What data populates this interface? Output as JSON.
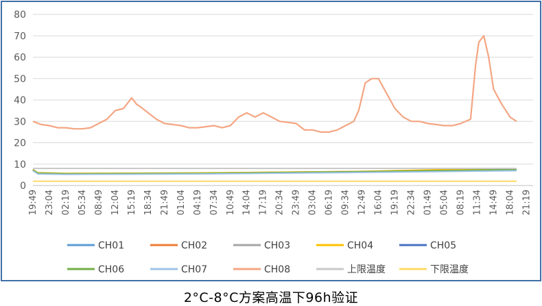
{
  "caption": "2°C-8°C方案高温下96h验证",
  "chart_data": {
    "type": "line",
    "title": "",
    "xlabel": "",
    "ylabel": "",
    "ylim": [
      0,
      80
    ],
    "yticks": [
      0,
      10,
      20,
      30,
      40,
      50,
      60,
      70,
      80
    ],
    "grid": "horizontal",
    "legend_position": "bottom",
    "x_tick_labels": [
      "19:49",
      "23:04",
      "02:19",
      "05:34",
      "08:49",
      "12:04",
      "15:19",
      "18:34",
      "21:49",
      "01:04",
      "04:19",
      "07:34",
      "10:49",
      "14:04",
      "17:19",
      "20:34",
      "23:49",
      "03:04",
      "06:19",
      "09:34",
      "12:49",
      "16:04",
      "19:19",
      "22:34",
      "01:49",
      "05:04",
      "08:19",
      "11:34",
      "14:49",
      "18:04",
      "21:19"
    ],
    "series": [
      {
        "name": "CH01",
        "color": "#5b9bd5",
        "x": [
          0,
          0.3,
          2,
          10,
          20,
          29.4
        ],
        "y": [
          7.2,
          5.6,
          5.4,
          5.6,
          6.4,
          7.2
        ]
      },
      {
        "name": "CH02",
        "color": "#ed7d31",
        "x": [
          0,
          0.3,
          2,
          10,
          20,
          29.4
        ],
        "y": [
          7.5,
          5.9,
          5.6,
          5.8,
          6.6,
          7.4
        ]
      },
      {
        "name": "CH03",
        "color": "#a5a5a5",
        "x": [
          0,
          0.3,
          2,
          10,
          20,
          29.4
        ],
        "y": [
          7.0,
          5.5,
          5.3,
          5.5,
          6.2,
          7.0
        ]
      },
      {
        "name": "CH04",
        "color": "#ffc000",
        "x": [
          0,
          0.3,
          2,
          10,
          20,
          24,
          29.4
        ],
        "y": [
          7.4,
          6.0,
          5.7,
          5.9,
          6.6,
          7.3,
          7.9
        ]
      },
      {
        "name": "CH05",
        "color": "#4472c4",
        "x": [
          0,
          0.3,
          2,
          10,
          20,
          29.4
        ],
        "y": [
          7.1,
          5.5,
          5.3,
          5.5,
          6.3,
          7.1
        ]
      },
      {
        "name": "CH06",
        "color": "#70ad47",
        "x": [
          0,
          0.3,
          2,
          10,
          20,
          29.4
        ],
        "y": [
          7.3,
          5.8,
          5.5,
          5.7,
          6.5,
          7.5
        ]
      },
      {
        "name": "CH07",
        "color": "#9dc3e6",
        "x": [
          0,
          0.3,
          2,
          10,
          20,
          29.4
        ],
        "y": [
          6.9,
          5.4,
          5.2,
          5.4,
          6.1,
          6.9
        ]
      },
      {
        "name": "CH08",
        "color": "#f4a582",
        "x": [
          0,
          0.5,
          1,
          1.5,
          2,
          2.5,
          3,
          3.5,
          4,
          4.5,
          5,
          5.5,
          6,
          6.3,
          6.5,
          7,
          7.5,
          8,
          8.5,
          9,
          9.5,
          10,
          10.5,
          11,
          11.5,
          12,
          12.5,
          13,
          13.5,
          14,
          14.5,
          15,
          15.5,
          16,
          16.5,
          17,
          17.5,
          18,
          18.5,
          19,
          19.5,
          19.8,
          20.2,
          20.6,
          21,
          21.5,
          22,
          22.5,
          23,
          23.5,
          24,
          24.5,
          25,
          25.5,
          26,
          26.3,
          26.6,
          26.9,
          27.1,
          27.4,
          27.7,
          28,
          28.5,
          29,
          29.4
        ],
        "y": [
          30,
          28.5,
          28,
          27,
          27,
          26.5,
          26.5,
          27,
          29,
          31,
          35,
          36,
          41,
          38,
          37,
          34,
          31,
          29,
          28.5,
          28,
          27,
          27,
          27.5,
          28,
          27,
          28,
          32,
          34,
          32,
          34,
          32,
          30,
          29.5,
          29,
          26,
          26,
          25,
          25,
          26,
          28,
          30,
          35,
          48,
          50,
          50,
          43,
          36,
          32,
          30,
          30,
          29,
          28.5,
          28,
          28,
          29,
          30,
          31,
          56,
          67,
          70,
          60,
          45,
          38,
          32,
          30
        ]
      },
      {
        "name": "上限温度",
        "color": "#c9c9c9",
        "x": [
          0,
          29.4
        ],
        "y": [
          8,
          8
        ]
      },
      {
        "name": "下限温度",
        "color": "#ffd966",
        "x": [
          0,
          29.4
        ],
        "y": [
          2,
          2
        ]
      }
    ]
  }
}
